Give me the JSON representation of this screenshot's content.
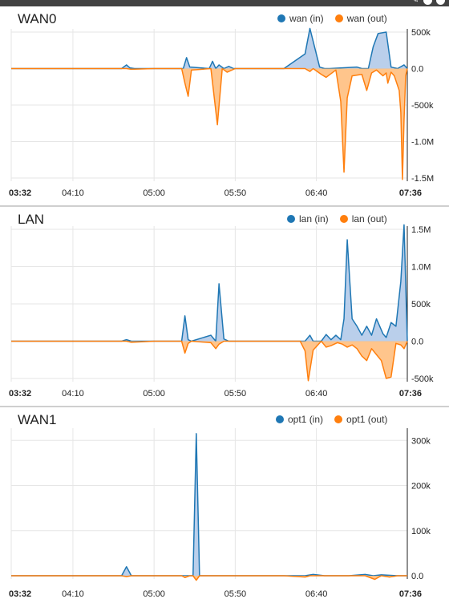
{
  "colors": {
    "in": "#1f77b4",
    "out": "#ff7f0e",
    "in_fill": "#aec7e8",
    "out_fill": "#ffbb78",
    "grid": "#e6e6e6"
  },
  "chart_data": [
    {
      "type": "area",
      "title": "WAN0",
      "x_ticks": [
        "03:32",
        "04:10",
        "05:00",
        "05:50",
        "06:40",
        "07:36"
      ],
      "x_ticks_bold": [
        "03:32",
        "07:36"
      ],
      "y_ticks": [
        "500k",
        "0.0",
        "-500k",
        "-1.0M",
        "-1.5M"
      ],
      "y_tick_values": [
        500000,
        0,
        -500000,
        -1000000,
        -1500000
      ],
      "ylim": [
        -1500000,
        500000
      ],
      "x_minutes_range": [
        212,
        456
      ],
      "grid": true,
      "legend_position": "top-right",
      "series": [
        {
          "name": "wan (in)",
          "x": [
            212,
            280,
            283,
            285,
            288,
            300,
            310,
            318,
            320,
            322,
            334,
            336,
            338,
            340,
            343,
            346,
            349,
            352,
            360,
            380,
            393,
            396,
            402,
            405,
            408,
            425,
            428,
            432,
            435,
            438,
            443,
            446,
            450,
            454,
            456
          ],
          "y": [
            0,
            0,
            50000,
            10000,
            0,
            0,
            0,
            0,
            150000,
            20000,
            0,
            100000,
            0,
            50000,
            0,
            30000,
            0,
            0,
            0,
            0,
            200000,
            550000,
            20000,
            0,
            0,
            20000,
            0,
            0,
            300000,
            480000,
            500000,
            20000,
            0,
            50000,
            0
          ]
        },
        {
          "name": "wan (out)",
          "x": [
            212,
            280,
            283,
            286,
            300,
            317,
            319,
            321,
            323,
            335,
            339,
            342,
            345,
            350,
            360,
            393,
            396,
            398,
            403,
            406,
            412,
            415,
            417,
            419,
            422,
            428,
            431,
            434,
            437,
            441,
            443,
            444,
            446,
            448,
            451,
            452,
            453,
            454,
            455,
            456
          ],
          "y": [
            0,
            0,
            0,
            -10000,
            0,
            0,
            -200000,
            -380000,
            -20000,
            0,
            -770000,
            0,
            -50000,
            0,
            0,
            0,
            -40000,
            0,
            -80000,
            -120000,
            -20000,
            -450000,
            -1420000,
            -400000,
            -100000,
            -80000,
            -300000,
            -60000,
            -20000,
            -100000,
            -60000,
            -200000,
            -50000,
            -100000,
            -300000,
            -600000,
            -1520000,
            -700000,
            -100000,
            0
          ]
        }
      ]
    },
    {
      "type": "area",
      "title": "LAN",
      "x_ticks": [
        "03:32",
        "04:10",
        "05:00",
        "05:50",
        "06:40",
        "07:36"
      ],
      "x_ticks_bold": [
        "03:32",
        "07:36"
      ],
      "y_ticks": [
        "1.5M",
        "1.0M",
        "500k",
        "0.0",
        "-500k"
      ],
      "y_tick_values": [
        1500000,
        1000000,
        500000,
        0,
        -500000
      ],
      "ylim": [
        -500000,
        1500000
      ],
      "x_minutes_range": [
        212,
        456
      ],
      "grid": true,
      "legend_position": "top-right",
      "series": [
        {
          "name": "lan (in)",
          "x": [
            212,
            280,
            283,
            286,
            300,
            317,
            319,
            321,
            323,
            335,
            338,
            340,
            343,
            346,
            350,
            360,
            393,
            396,
            398,
            403,
            406,
            409,
            412,
            415,
            417,
            419,
            422,
            425,
            428,
            431,
            434,
            437,
            441,
            443,
            446,
            449,
            452,
            454,
            456
          ],
          "y": [
            0,
            0,
            20000,
            0,
            0,
            0,
            340000,
            20000,
            0,
            80000,
            0,
            770000,
            30000,
            0,
            0,
            0,
            0,
            80000,
            0,
            0,
            90000,
            20000,
            80000,
            20000,
            300000,
            1360000,
            300000,
            200000,
            80000,
            200000,
            80000,
            300000,
            100000,
            50000,
            250000,
            200000,
            800000,
            1560000,
            0
          ]
        },
        {
          "name": "lan (out)",
          "x": [
            212,
            280,
            283,
            286,
            300,
            317,
            319,
            321,
            323,
            335,
            338,
            340,
            343,
            346,
            350,
            360,
            390,
            393,
            395,
            398,
            403,
            406,
            409,
            413,
            416,
            419,
            422,
            425,
            428,
            431,
            434,
            437,
            440,
            443,
            446,
            449,
            452,
            454,
            456
          ],
          "y": [
            0,
            0,
            0,
            -15000,
            0,
            0,
            -160000,
            -30000,
            0,
            -20000,
            -100000,
            -40000,
            0,
            0,
            0,
            0,
            0,
            -130000,
            -530000,
            -120000,
            0,
            -80000,
            -60000,
            -20000,
            -40000,
            -80000,
            -50000,
            -100000,
            -200000,
            -260000,
            -100000,
            -180000,
            -260000,
            -500000,
            -480000,
            -30000,
            -50000,
            -100000,
            0
          ]
        }
      ]
    },
    {
      "type": "area",
      "title": "WAN1",
      "x_ticks": [
        "03:32",
        "04:10",
        "05:00",
        "05:50",
        "06:40",
        "07:36"
      ],
      "x_ticks_bold": [
        "03:32",
        "07:36"
      ],
      "y_ticks": [
        "300k",
        "200k",
        "100k",
        "0.0"
      ],
      "y_tick_values": [
        300000,
        200000,
        100000,
        0
      ],
      "ylim": [
        0,
        320000
      ],
      "x_minutes_range": [
        212,
        456
      ],
      "grid": true,
      "legend_position": "top-right",
      "series": [
        {
          "name": "opt1 (in)",
          "x": [
            212,
            280,
            283,
            286,
            300,
            317,
            322,
            324,
            326,
            328,
            332,
            350,
            380,
            393,
            398,
            405,
            420,
            430,
            435,
            440,
            450,
            456
          ],
          "y": [
            0,
            0,
            20000,
            0,
            0,
            0,
            0,
            0,
            315000,
            0,
            0,
            0,
            0,
            0,
            3000,
            0,
            0,
            3000,
            0,
            2000,
            0,
            0
          ]
        },
        {
          "name": "opt1 (out)",
          "x": [
            212,
            280,
            283,
            286,
            300,
            317,
            319,
            322,
            324,
            326,
            328,
            332,
            350,
            380,
            393,
            396,
            400,
            420,
            430,
            436,
            440,
            445,
            450,
            456
          ],
          "y": [
            0,
            0,
            -2000,
            0,
            0,
            0,
            -4000,
            0,
            0,
            -10000,
            0,
            0,
            0,
            0,
            -3000,
            0,
            0,
            0,
            0,
            -8000,
            0,
            -3000,
            0,
            0
          ]
        }
      ]
    }
  ]
}
